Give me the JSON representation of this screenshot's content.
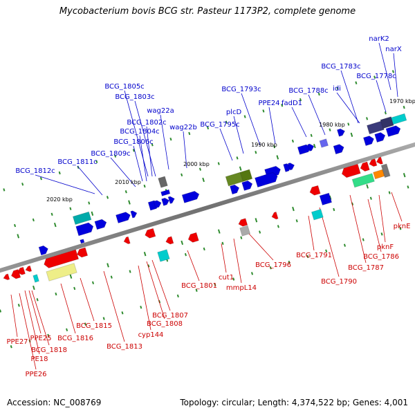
{
  "title": "Mycobacterium bovis BCG str. Pasteur 1173P2, complete genome",
  "footer": {
    "accession": "Accession: NC_008769",
    "summary": "Topology: circular; Length: 4,374,522 bp; Genes: 4,001"
  },
  "colors": {
    "forward_label": "#0000cc",
    "reverse_label": "#cc0000",
    "backbone": "#808080",
    "tick": "#2e8b2e"
  },
  "scale": [
    "1970 kbp",
    "1980 kbp",
    "1990 kbp",
    "2000 kbp",
    "2010 kbp",
    "2020 kbp"
  ],
  "forward_genes": [
    "narK2",
    "narX",
    "BCG_1783c",
    "BCG_1778c",
    "idi",
    "BCG_1788c",
    "fadD1",
    "BCG_1793c",
    "PPE24",
    "plcD",
    "BCG_1795c",
    "BCG_1805c",
    "BCG_1803c",
    "wag22a",
    "BCG_1802c",
    "wag22b",
    "BCG_1804c",
    "BCG_1806c",
    "BCG_1809c",
    "BCG_1811c",
    "BCG_1812c"
  ],
  "reverse_genes": [
    "pknE",
    "pknF",
    "BCG_1786",
    "BCG_1787",
    "BCG_1791",
    "BCG_1790",
    "BCG_1796",
    "mmpL14",
    "cut1",
    "BCG_1801",
    "BCG_1807",
    "BCG_1808",
    "cyp144",
    "BCG_1813",
    "BCG_1815",
    "BCG_1816",
    "BCG_1818",
    "PPE25",
    "PPE27",
    "PE18",
    "PPE26"
  ]
}
